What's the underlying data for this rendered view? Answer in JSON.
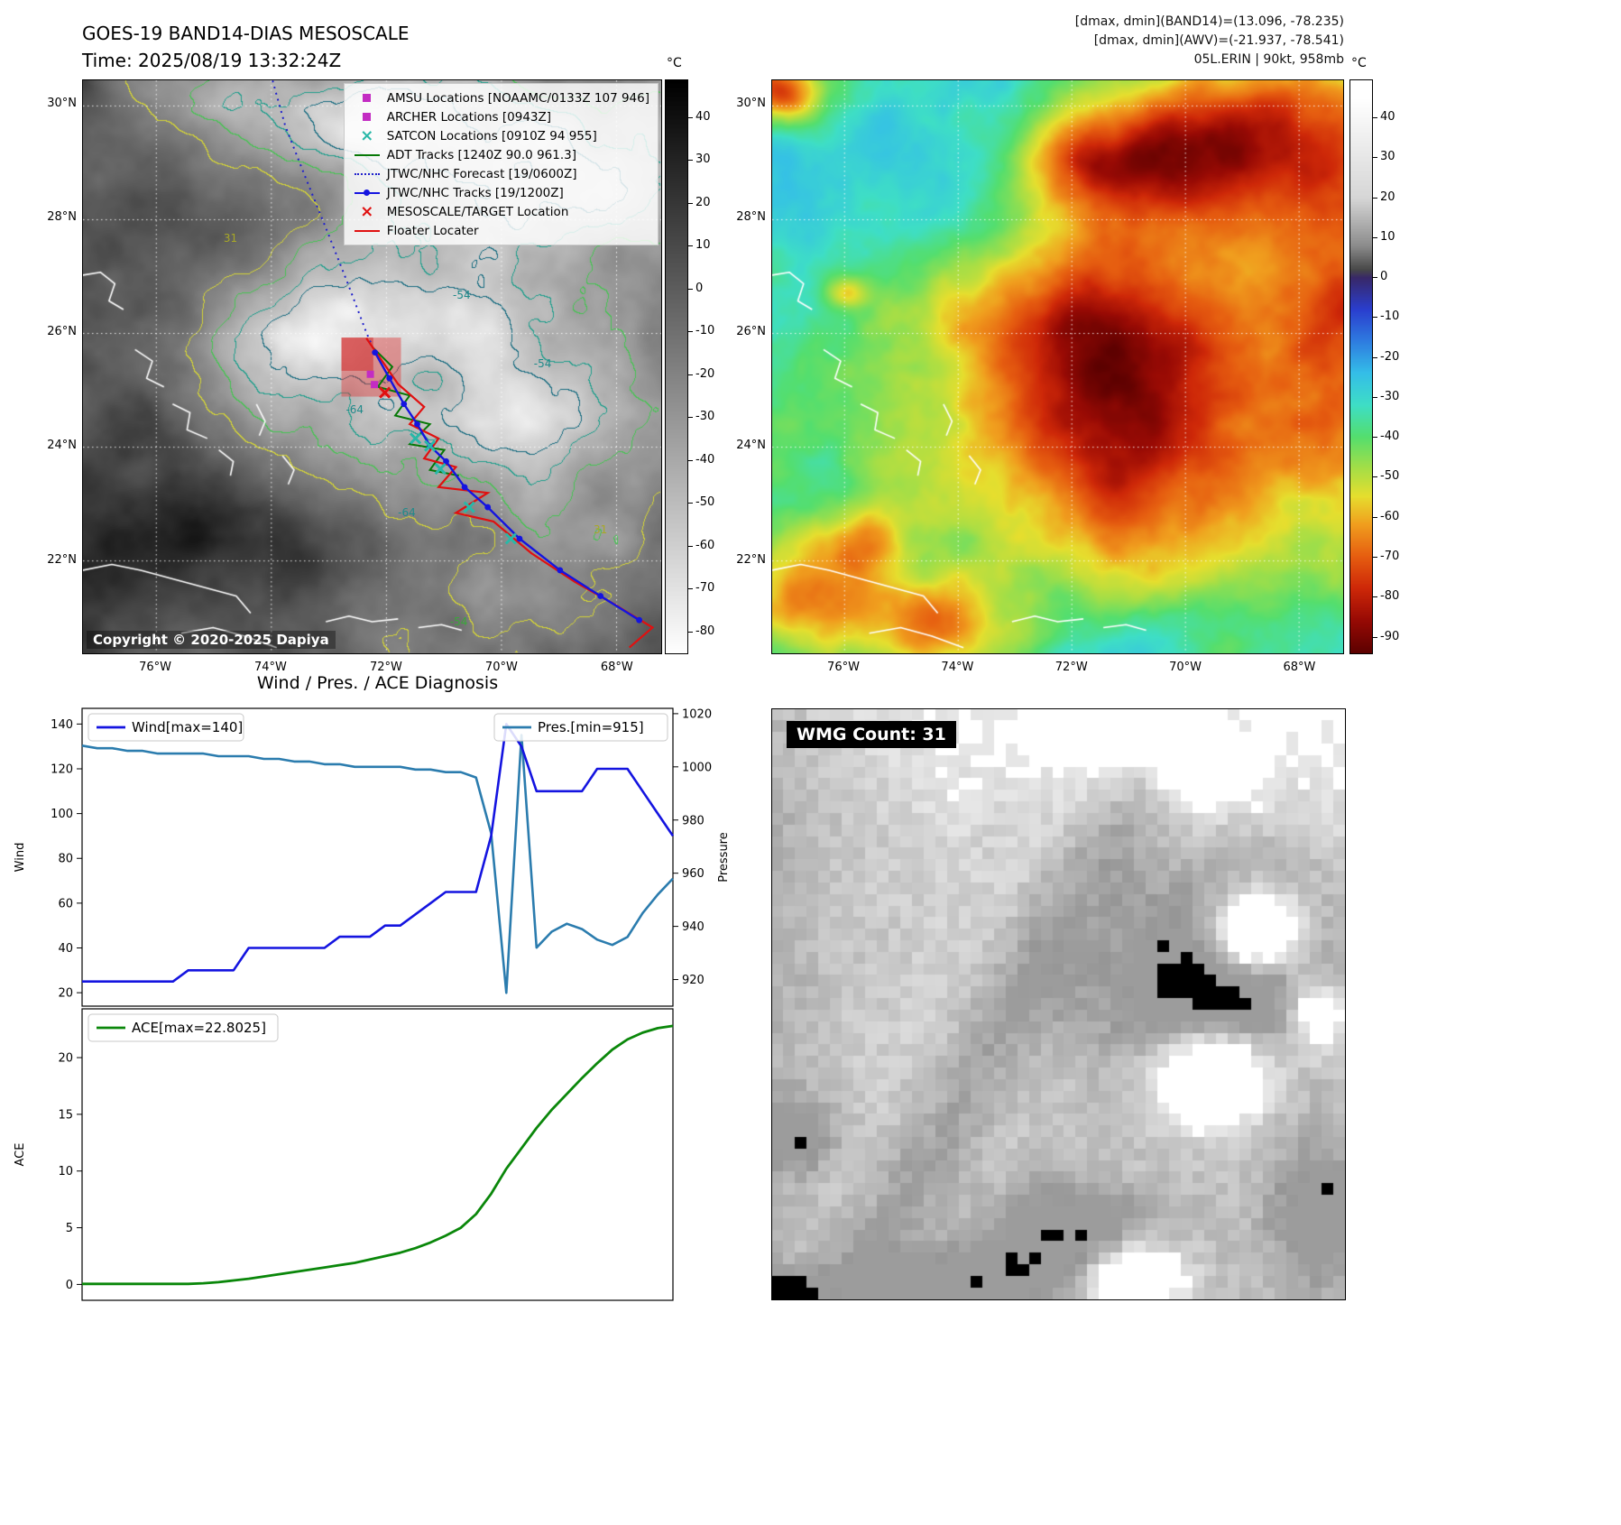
{
  "panel_tl": {
    "title": "GOES-19 BAND14-DIAS MESOSCALE",
    "subtitle": "Time: 2025/08/19 13:32:24Z",
    "copyright": "Copyright © 2020-2025 Dapiya",
    "lat_ticks": [
      "30°N",
      "28°N",
      "26°N",
      "24°N",
      "22°N"
    ],
    "lon_ticks": [
      "76°W",
      "74°W",
      "72°W",
      "70°W",
      "68°W"
    ],
    "colorbar": {
      "unit": "°C",
      "ticks": [
        40,
        30,
        20,
        10,
        0,
        -10,
        -20,
        -30,
        -40,
        -50,
        -60,
        -70,
        -80
      ]
    },
    "legend": [
      {
        "id": "amsu",
        "marker": "square",
        "color": "#c32cc3",
        "label": "AMSU Locations [NOAAMC/0133Z 107 946]"
      },
      {
        "id": "archer",
        "marker": "square",
        "color": "#c32cc3",
        "label": "ARCHER Locations [0943Z]"
      },
      {
        "id": "satcon",
        "marker": "x",
        "color": "#29b8a8",
        "label": "SATCON Locations [0910Z 94 955]"
      },
      {
        "id": "adt",
        "marker": "line",
        "color": "#067806",
        "label": "ADT Tracks [1240Z 90.0 961.3]"
      },
      {
        "id": "forecast",
        "marker": "dotted",
        "color": "#2222cc",
        "label": "JTWC/NHC Forecast [19/0600Z]"
      },
      {
        "id": "jtwc",
        "marker": "linedot",
        "color": "#1414e0",
        "label": "JTWC/NHC Tracks [19/1200Z]"
      },
      {
        "id": "target",
        "marker": "x",
        "color": "#e01010",
        "label": "MESOSCALE/TARGET Location"
      },
      {
        "id": "floater",
        "marker": "line",
        "color": "#e01010",
        "label": "Floater Locater"
      }
    ],
    "contour_labels": [
      {
        "text": "31",
        "fx": 0.255,
        "fy": 0.275,
        "color": "#a8a826"
      },
      {
        "text": "-54",
        "fx": 0.655,
        "fy": 0.375,
        "color": "#1f8a8a"
      },
      {
        "text": "-54",
        "fx": 0.795,
        "fy": 0.495,
        "color": "#1f8a8a"
      },
      {
        "text": "-64",
        "fx": 0.47,
        "fy": 0.575,
        "color": "#1f8a8a"
      },
      {
        "text": "-64",
        "fx": 0.56,
        "fy": 0.755,
        "color": "#1f8a8a"
      },
      {
        "text": "-54",
        "fx": 0.65,
        "fy": 0.945,
        "color": "#3aa83a"
      },
      {
        "text": "31",
        "fx": 0.895,
        "fy": 0.785,
        "color": "#a8a826"
      }
    ],
    "contour_colors": [
      "#d4d437",
      "#47c353",
      "#1f9e8c",
      "#176b80"
    ]
  },
  "panel_tr": {
    "header_lines": [
      "[dmax, dmin](BAND14)=(13.096, -78.235)",
      "[dmax, dmin](AWV)=(-21.937, -78.541)",
      "05L.ERIN | 90kt, 958mb"
    ],
    "lat_ticks": [
      "30°N",
      "28°N",
      "26°N",
      "24°N",
      "22°N"
    ],
    "lon_ticks": [
      "76°W",
      "74°W",
      "72°W",
      "70°W",
      "68°W"
    ],
    "colorbar": {
      "unit": "°C",
      "ticks": [
        40,
        30,
        20,
        10,
        0,
        -10,
        -20,
        -30,
        -40,
        -50,
        -60,
        -70,
        -80,
        -90
      ]
    }
  },
  "panel_br": {
    "wmg_label": "WMG Count: 31"
  },
  "chart_data": [
    {
      "type": "line",
      "title": "Wind / Pres. / ACE Diagnosis",
      "x_index_count": 40,
      "series": [
        {
          "name": "Wind[max=140]",
          "axis": "left",
          "color": "#1414e0",
          "values": [
            25,
            25,
            25,
            25,
            25,
            25,
            25,
            30,
            30,
            30,
            30,
            40,
            40,
            40,
            40,
            40,
            40,
            45,
            45,
            45,
            50,
            50,
            55,
            60,
            65,
            65,
            65,
            90,
            140,
            130,
            110,
            110,
            110,
            110,
            120,
            120,
            120,
            110,
            100,
            90
          ]
        },
        {
          "name": "Pres.[min=915]",
          "axis": "right",
          "color": "#2b7cae",
          "values": [
            1008,
            1007,
            1007,
            1006,
            1006,
            1005,
            1005,
            1005,
            1005,
            1004,
            1004,
            1004,
            1003,
            1003,
            1002,
            1002,
            1001,
            1001,
            1000,
            1000,
            1000,
            1000,
            999,
            999,
            998,
            998,
            996,
            975,
            915,
            1012,
            932,
            938,
            941,
            939,
            935,
            933,
            936,
            945,
            952,
            958
          ]
        }
      ],
      "left_axis": {
        "label": "Wind",
        "ticks": [
          20,
          40,
          60,
          80,
          100,
          120,
          140
        ],
        "range": [
          14,
          147
        ]
      },
      "right_axis": {
        "label": "Pressure",
        "ticks": [
          920,
          940,
          960,
          980,
          1000,
          1020
        ],
        "range": [
          910,
          1022
        ]
      },
      "legend_position": [
        "upper left",
        "upper right"
      ],
      "grid": false
    },
    {
      "type": "line",
      "title": "",
      "series": [
        {
          "name": "ACE[max=22.8025]",
          "axis": "left",
          "color": "#0a870a",
          "values": [
            0.05,
            0.05,
            0.05,
            0.05,
            0.05,
            0.05,
            0.05,
            0.05,
            0.1,
            0.2,
            0.35,
            0.5,
            0.7,
            0.9,
            1.1,
            1.3,
            1.5,
            1.7,
            1.9,
            2.2,
            2.5,
            2.8,
            3.2,
            3.7,
            4.3,
            5.0,
            6.2,
            8.0,
            10.2,
            12.0,
            13.8,
            15.4,
            16.8,
            18.2,
            19.5,
            20.7,
            21.6,
            22.2,
            22.6,
            22.8
          ]
        }
      ],
      "left_axis": {
        "label": "ACE",
        "ticks": [
          0,
          5,
          10,
          15,
          20
        ],
        "range": [
          -1.4,
          24.3
        ]
      },
      "legend_position": [
        "upper left"
      ],
      "grid": false
    }
  ]
}
